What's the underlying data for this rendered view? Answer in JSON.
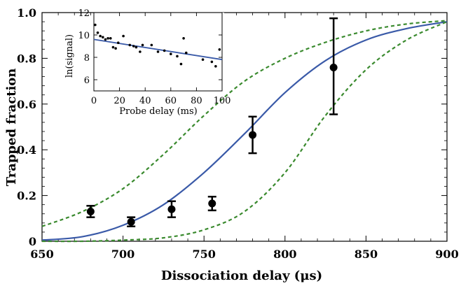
{
  "chart_data": [
    {
      "type": "scatter",
      "title": "",
      "xlabel": "Dissociation delay (μs)",
      "ylabel": "Trapped fraction",
      "xlim": [
        650,
        900
      ],
      "ylim": [
        0,
        1.0
      ],
      "xticks": [
        "650",
        "700",
        "750",
        "800",
        "850",
        "900"
      ],
      "yticks": [
        "0",
        "0.2",
        "0.4",
        "0.6",
        "0.8",
        "1.0"
      ],
      "grid": false,
      "series": [
        {
          "kind": "points_with_error_bars",
          "color": "#000000",
          "x": [
            680,
            705,
            730,
            755,
            780,
            830
          ],
          "y": [
            0.13,
            0.085,
            0.14,
            0.165,
            0.465,
            0.76
          ],
          "err_low": [
            0.025,
            0.02,
            0.035,
            0.03,
            0.08,
            0.205
          ],
          "err_high": [
            0.025,
            0.02,
            0.035,
            0.03,
            0.08,
            0.215
          ]
        },
        {
          "kind": "fit_curve",
          "style": "solid",
          "color": "#3a5aa8",
          "x": [
            650,
            675,
            700,
            725,
            750,
            775,
            800,
            825,
            850,
            875,
            900
          ],
          "y": [
            0.005,
            0.02,
            0.07,
            0.16,
            0.3,
            0.47,
            0.65,
            0.79,
            0.88,
            0.93,
            0.96
          ]
        },
        {
          "kind": "bound_curve",
          "style": "dashed",
          "color": "#3a8a2e",
          "x": [
            650,
            675,
            700,
            725,
            750,
            775,
            800,
            825,
            850,
            875,
            900
          ],
          "y": [
            0.065,
            0.13,
            0.23,
            0.38,
            0.55,
            0.7,
            0.8,
            0.87,
            0.92,
            0.95,
            0.965
          ]
        },
        {
          "kind": "bound_curve",
          "style": "dashed",
          "color": "#3a8a2e",
          "x": [
            650,
            675,
            700,
            725,
            750,
            775,
            800,
            825,
            850,
            875,
            900
          ],
          "y": [
            0.0,
            0.0,
            0.005,
            0.015,
            0.05,
            0.13,
            0.3,
            0.55,
            0.75,
            0.88,
            0.96
          ]
        }
      ]
    },
    {
      "type": "scatter",
      "placement": "inset-top-left",
      "title": "",
      "xlabel": "Probe delay (ms)",
      "ylabel": "ln(signal)",
      "xlim": [
        0,
        100
      ],
      "ylim": [
        5,
        12
      ],
      "xticks": [
        "0",
        "20",
        "40",
        "60",
        "80",
        "100"
      ],
      "yticks": [
        "6",
        "8",
        "10",
        "12"
      ],
      "grid": false,
      "series": [
        {
          "kind": "points",
          "color": "#000000",
          "x": [
            1,
            3,
            5,
            7,
            9,
            11,
            13,
            15,
            17,
            19,
            23,
            28,
            31,
            33,
            36,
            38,
            45,
            50,
            55,
            60,
            65,
            68,
            70,
            72,
            85,
            92,
            95,
            98
          ],
          "y": [
            10.9,
            10.2,
            9.9,
            9.8,
            9.6,
            9.7,
            9.7,
            8.9,
            8.8,
            9.3,
            9.9,
            9.1,
            9.0,
            8.9,
            8.5,
            9.1,
            9.1,
            8.5,
            8.6,
            8.3,
            8.1,
            7.4,
            9.7,
            8.4,
            7.8,
            7.6,
            7.2,
            8.7
          ]
        },
        {
          "kind": "fit_line",
          "style": "solid",
          "color": "#3a5aa8",
          "x": [
            0,
            100
          ],
          "y": [
            9.6,
            7.8
          ]
        }
      ]
    }
  ]
}
